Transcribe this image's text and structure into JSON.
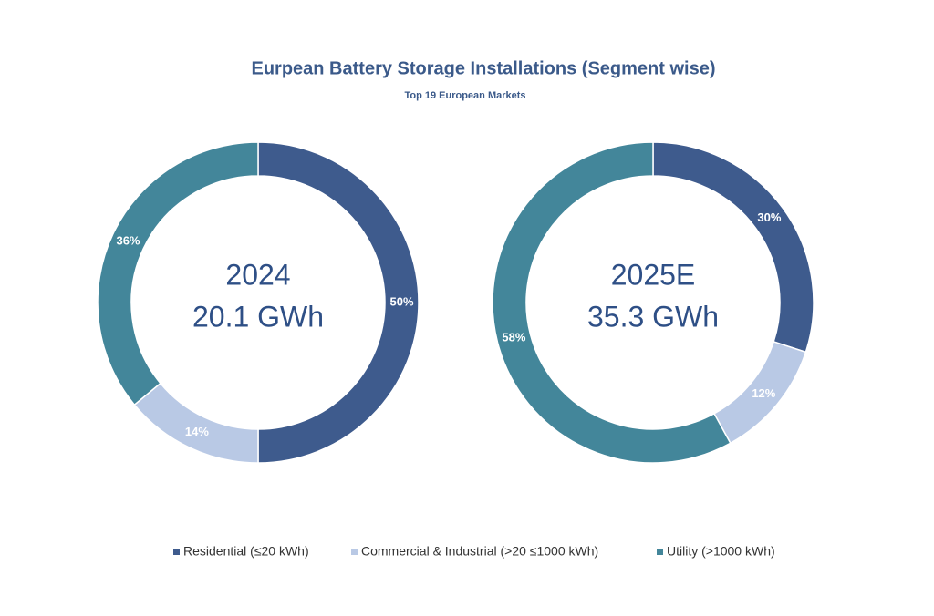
{
  "title": "Eurpean Battery Storage Installations (Segment wise)",
  "subtitle": "Top 19 European Markets",
  "chart_data": [
    {
      "type": "pie",
      "donut": true,
      "center_label": [
        "2024",
        "20.1 GWh"
      ],
      "categories": [
        "Residential (≤20 kWh)",
        "Commercial & Industrial (>20 ≤1000 kWh)",
        "Utility (>1000 kWh)"
      ],
      "values": [
        50,
        14,
        36
      ],
      "value_labels": [
        "50%",
        "14%",
        "36%"
      ],
      "colors": [
        "#3e5b8d",
        "#b9c9e5",
        "#43869a"
      ]
    },
    {
      "type": "pie",
      "donut": true,
      "center_label": [
        "2025E",
        "35.3 GWh"
      ],
      "categories": [
        "Residential (≤20 kWh)",
        "Commercial & Industrial (>20 ≤1000 kWh)",
        "Utility (>1000 kWh)"
      ],
      "values": [
        30,
        12,
        58
      ],
      "value_labels": [
        "30%",
        "12%",
        "58%"
      ],
      "colors": [
        "#3e5b8d",
        "#b9c9e5",
        "#43869a"
      ]
    }
  ]
}
